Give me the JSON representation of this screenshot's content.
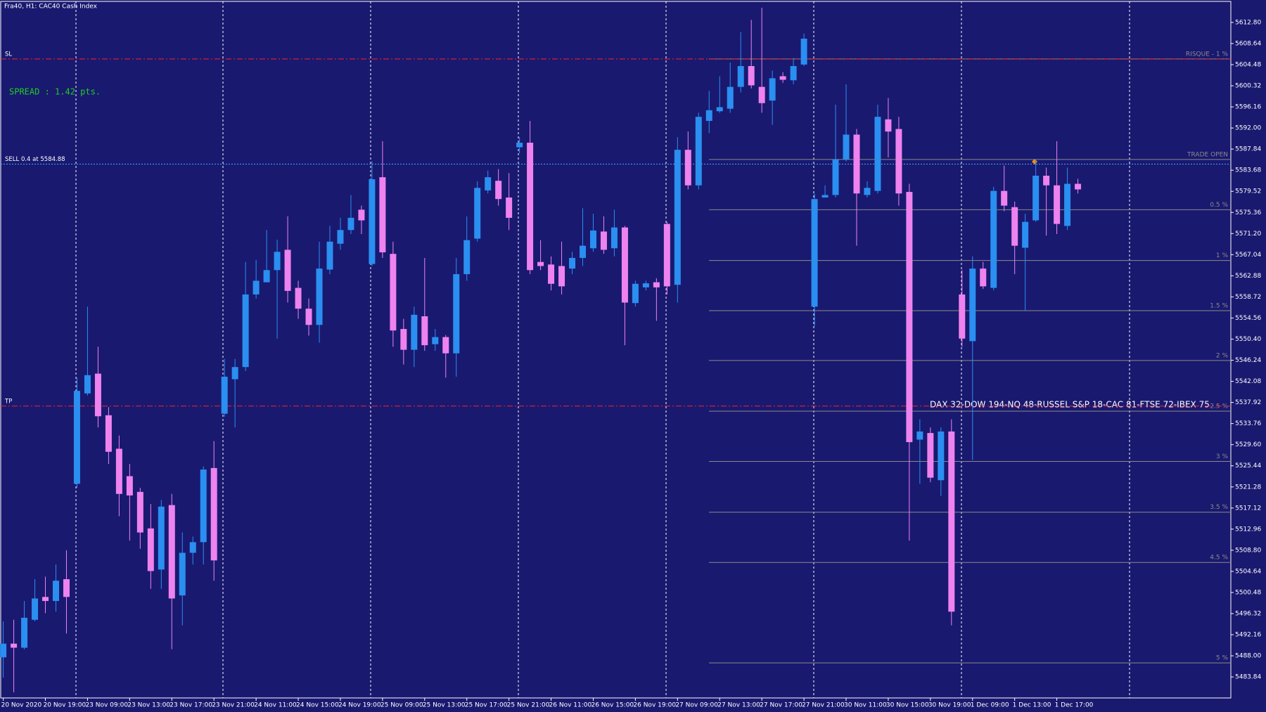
{
  "chart_data": {
    "type": "candlestick",
    "title": "Fra40, H1:  CAC40 Cash Index",
    "spread": "SPREAD : 1.42 pts.",
    "annotation": "DAX 32-DOW 194-NQ 48-RUSSEL S&P 18-CAC 81-FTSE 72-IBEX 75",
    "up_color": "#2a8ff0",
    "down_color": "#ee82ee",
    "categories": [
      "20 Nov 2020",
      null,
      null,
      null,
      "20 Nov 19:00",
      null,
      null,
      null,
      "23 Nov 09:00",
      null,
      null,
      null,
      "23 Nov 13:00",
      null,
      null,
      null,
      "23 Nov 17:00",
      null,
      null,
      null,
      "23 Nov 21:00",
      null,
      null,
      null,
      "24 Nov 11:00",
      null,
      null,
      null,
      "24 Nov 15:00",
      null,
      null,
      null,
      "24 Nov 19:00",
      null,
      null,
      null,
      "25 Nov 09:00",
      null,
      null,
      null,
      "25 Nov 13:00",
      null,
      null,
      null,
      "25 Nov 17:00",
      null,
      null,
      null,
      "25 Nov 21:00",
      null,
      null,
      null,
      "26 Nov 11:00",
      null,
      null,
      null,
      "26 Nov 15:00",
      null,
      null,
      null,
      "26 Nov 19:00",
      null,
      null,
      null,
      "27 Nov 09:00",
      null,
      null,
      null,
      "27 Nov 13:00",
      null,
      null,
      null,
      "27 Nov 17:00",
      null,
      null,
      null,
      "27 Nov 21:00",
      null,
      null,
      null,
      "30 Nov 11:00",
      null,
      null,
      null,
      "30 Nov 15:00",
      null,
      null,
      null,
      "30 Nov 19:00",
      null,
      null,
      null,
      "1 Dec 09:00",
      null,
      null,
      null,
      "1 Dec 13:00",
      null,
      null,
      null,
      "1 Dec 17:00",
      null,
      null
    ],
    "open": [
      5487.7,
      5490.4,
      5489.6,
      5495.1,
      5499.6,
      5498.8,
      5503.1,
      5521.9,
      5539.7,
      5543.6,
      5535.4,
      5528.8,
      5523.4,
      5520.3,
      5513.1,
      5505.0,
      5517.7,
      5499.9,
      5508.3,
      5510.4,
      5525.0,
      5535.7,
      5542.5,
      5544.9,
      5559.2,
      5561.6,
      5564.0,
      5568.0,
      5560.5,
      5556.4,
      5553.2,
      5564.1,
      5569.2,
      5571.9,
      5575.9,
      5565.2,
      5582.3,
      5567.2,
      5552.4,
      5548.3,
      5554.9,
      5549.4,
      5550.8,
      5547.6,
      5563.2,
      5570.2,
      5579.7,
      5581.6,
      5578.3,
      5588.2,
      5589.1,
      5565.6,
      5565.1,
      5564.8,
      5564.3,
      5566.4,
      5568.3,
      5571.6,
      5568.3,
      5572.4,
      5557.5,
      5560.6,
      5561.6,
      5573.1,
      5561.1,
      5587.7,
      5580.7,
      5593.4,
      5595.3,
      5595.8,
      5600.1,
      5604.2,
      5600.1,
      5597.4,
      5602.2,
      5601.4,
      5604.5,
      5556.8,
      5578.3,
      5578.8,
      5585.8,
      5590.7,
      5578.8,
      5579.6,
      5593.7,
      5591.8,
      5579.4,
      5530.6,
      5531.9,
      5522.6,
      5532.2,
      5559.2,
      5550.0,
      5564.3,
      5560.5,
      5579.6,
      5576.4,
      5568.4,
      5573.8,
      5582.6,
      5580.7,
      5572.7,
      5581.0
    ],
    "high": [
      5494.8,
      5495.1,
      5498.8,
      5503.1,
      5503.6,
      5506.0,
      5508.8,
      5542.8,
      5556.8,
      5548.9,
      5537.0,
      5531.4,
      5525.8,
      5521.1,
      5517.9,
      5518.7,
      5519.9,
      5512.3,
      5511.5,
      5525.3,
      5530.3,
      5546.5,
      5546.5,
      5565.6,
      5566.0,
      5571.9,
      5570.0,
      5574.6,
      5561.9,
      5558.4,
      5569.6,
      5572.7,
      5574.3,
      5578.8,
      5576.7,
      5585.4,
      5589.4,
      5569.6,
      5554.4,
      5556.8,
      5566.4,
      5552.4,
      5551.2,
      5566.4,
      5574.6,
      5581.5,
      5583.6,
      5583.9,
      5583.1,
      5590.2,
      5593.4,
      5569.9,
      5566.7,
      5569.6,
      5567.6,
      5576.2,
      5575.1,
      5574.6,
      5575.9,
      5572.7,
      5561.9,
      5561.9,
      5562.4,
      5573.5,
      5590.2,
      5591.3,
      5595.0,
      5599.3,
      5602.2,
      5604.9,
      5610.9,
      5613.3,
      5615.7,
      5603.3,
      5603.0,
      5605.8,
      5610.6,
      5579.1,
      5580.7,
      5596.6,
      5600.6,
      5591.8,
      5581.5,
      5596.6,
      5597.9,
      5594.2,
      5581.0,
      5534.6,
      5533.0,
      5533.0,
      5534.6,
      5564.0,
      5566.7,
      5565.6,
      5580.4,
      5584.6,
      5577.5,
      5575.1,
      5585.8,
      5584.2,
      5589.4,
      5584.2,
      5582.0
    ],
    "low": [
      5483.7,
      5480.8,
      5489.3,
      5494.8,
      5496.4,
      5496.7,
      5492.4,
      5521.1,
      5539.3,
      5533.0,
      5525.8,
      5515.5,
      5510.7,
      5509.1,
      5501.2,
      5501.2,
      5489.3,
      5494.0,
      5506.0,
      5506.0,
      5502.8,
      5535.1,
      5533.0,
      5544.1,
      5558.4,
      5561.6,
      5550.5,
      5557.6,
      5554.4,
      5551.1,
      5549.7,
      5563.2,
      5568.0,
      5571.1,
      5571.1,
      5564.8,
      5566.4,
      5548.9,
      5545.4,
      5544.9,
      5548.1,
      5548.1,
      5542.8,
      5543.0,
      5561.9,
      5569.6,
      5579.1,
      5576.7,
      5571.9,
      5587.0,
      5563.2,
      5564.0,
      5560.0,
      5559.2,
      5563.2,
      5564.8,
      5567.6,
      5567.2,
      5566.7,
      5549.2,
      5556.8,
      5560.0,
      5554.0,
      5559.2,
      5557.6,
      5579.9,
      5579.9,
      5591.0,
      5595.0,
      5595.0,
      5599.0,
      5599.8,
      5595.0,
      5592.6,
      5600.9,
      5600.6,
      5604.2,
      5552.9,
      5578.3,
      5578.3,
      5585.4,
      5568.8,
      5578.3,
      5579.1,
      5586.2,
      5576.7,
      5510.7,
      5521.9,
      5522.2,
      5519.5,
      5494.0,
      5548.9,
      5526.6,
      5560.3,
      5560.0,
      5575.6,
      5563.2,
      5556.0,
      5573.5,
      5570.8,
      5571.1,
      5571.9,
      5579.1
    ],
    "close": [
      5490.4,
      5489.6,
      5495.5,
      5499.3,
      5498.8,
      5502.8,
      5499.6,
      5540.2,
      5543.3,
      5535.2,
      5528.2,
      5519.9,
      5519.6,
      5512.3,
      5504.7,
      5517.4,
      5499.3,
      5508.3,
      5510.4,
      5524.7,
      5506.8,
      5543.0,
      5544.9,
      5559.2,
      5561.9,
      5564.0,
      5567.6,
      5559.9,
      5556.4,
      5553.2,
      5564.3,
      5569.6,
      5571.9,
      5574.3,
      5573.8,
      5581.9,
      5567.5,
      5552.1,
      5548.3,
      5555.2,
      5549.2,
      5550.8,
      5547.6,
      5563.2,
      5569.9,
      5580.2,
      5582.3,
      5578.0,
      5574.3,
      5589.1,
      5564.0,
      5564.8,
      5561.3,
      5560.8,
      5566.4,
      5568.8,
      5571.8,
      5568.0,
      5572.4,
      5557.6,
      5561.3,
      5561.4,
      5560.6,
      5560.8,
      5587.7,
      5580.7,
      5594.2,
      5595.5,
      5596.1,
      5600.1,
      5604.2,
      5600.4,
      5596.9,
      5601.8,
      5601.5,
      5604.2,
      5609.6,
      5578.0,
      5578.8,
      5585.8,
      5590.7,
      5579.1,
      5580.2,
      5594.2,
      5591.3,
      5579.1,
      5530.1,
      5532.2,
      5523.1,
      5532.2,
      5496.7,
      5550.5,
      5564.3,
      5560.8,
      5579.6,
      5576.7,
      5568.8,
      5573.5,
      5582.6,
      5580.7,
      5573.1,
      5581.0,
      5579.9
    ],
    "ylim": [
      5479.7,
      5616.9
    ],
    "yticks": [
      {
        "value": 5612.8,
        "label": "5612.80"
      },
      5608.64,
      5604.48,
      5600.32,
      5596.16,
      {
        "value": 5592,
        "label": "5592.00"
      },
      5587.84,
      5583.68,
      5579.52,
      5575.36,
      {
        "value": 5571.2,
        "label": "5571.20"
      },
      5567.04,
      5562.88,
      5558.72,
      5554.56,
      {
        "value": 5550.4,
        "label": "5550.40"
      },
      5546.24,
      5542.08,
      5537.92,
      5533.76,
      {
        "value": 5529.6,
        "label": "5529.60"
      },
      5525.44,
      5521.28,
      5517.12,
      5512.96,
      {
        "value": 5508.8,
        "label": "5508.80"
      },
      5504.64,
      5500.48,
      5496.32,
      5492.16,
      {
        "value": 5488,
        "label": "5488.00"
      },
      5483.84
    ],
    "hlines": [
      {
        "label": "SL",
        "value": 5605.6,
        "color": "#ff2020"
      },
      {
        "label": "SELL 0.4 at 5584.88",
        "value": 5584.88,
        "color": "#3fa9ff"
      },
      {
        "label": "TP",
        "value": 5537.2,
        "color": "#ff2020"
      }
    ],
    "levels": [
      {
        "value": 5605.6,
        "label": "RISQUE - 1 %"
      },
      {
        "value": 5585.8,
        "label": "TRADE OPEN"
      },
      {
        "value": 5575.9,
        "label": "0.5 %"
      },
      {
        "value": 5565.9,
        "label": "1 %"
      },
      {
        "value": 5556.0,
        "label": "1.5 %"
      },
      {
        "value": 5546.2,
        "label": "2 %"
      },
      {
        "value": 5536.2,
        "label": "2.5 %"
      },
      {
        "value": 5526.3,
        "label": "3 %"
      },
      {
        "value": 5516.3,
        "label": "3.5 %"
      },
      {
        "value": 5506.4,
        "label": "4.5 %"
      },
      {
        "value": 5486.6,
        "label": "5 %"
      }
    ]
  }
}
